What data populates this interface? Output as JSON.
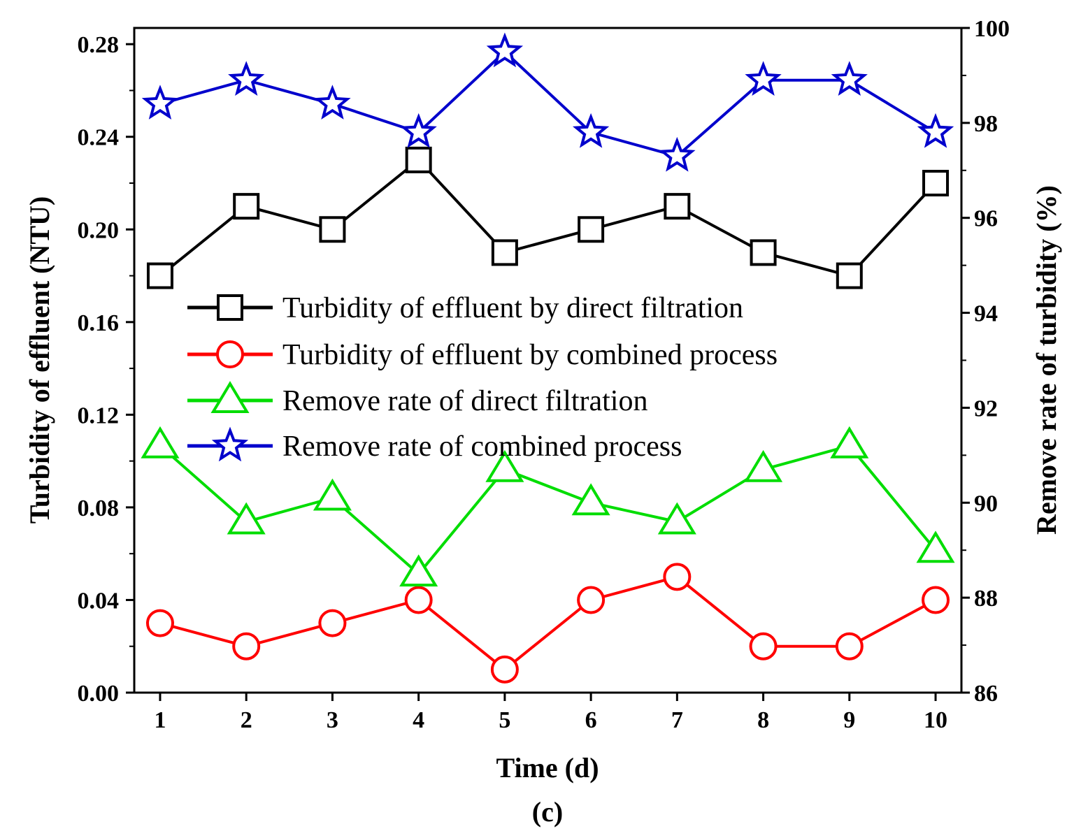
{
  "chart_data": {
    "type": "line",
    "panel_label": "(c)",
    "xlabel": "Time (d)",
    "ylabel_left": "Turbidity of effluent (NTU)",
    "ylabel_right": "Remove rate of turbidity (%)",
    "x": [
      1,
      2,
      3,
      4,
      5,
      6,
      7,
      8,
      9,
      10
    ],
    "x_tick_labels": [
      "1",
      "2",
      "3",
      "4",
      "5",
      "6",
      "7",
      "8",
      "9",
      "10"
    ],
    "xlim": [
      0.7,
      10.3
    ],
    "ylim_left": [
      0,
      0.287
    ],
    "ylim_right": [
      86,
      100
    ],
    "y_left_ticks": [
      "0.00",
      "0.04",
      "0.08",
      "0.12",
      "0.16",
      "0.20",
      "0.24",
      "0.28"
    ],
    "y_right_ticks": [
      "86",
      "88",
      "90",
      "92",
      "94",
      "96",
      "98",
      "100"
    ],
    "legend_position": "center",
    "series": [
      {
        "name": "Turbidity of effluent by direct filtration",
        "axis": "left",
        "marker": "square",
        "color": "#000000",
        "values": [
          0.18,
          0.21,
          0.2,
          0.23,
          0.19,
          0.2,
          0.21,
          0.19,
          0.18,
          0.22
        ]
      },
      {
        "name": "Turbidity of effluent by combined process",
        "axis": "left",
        "marker": "circle",
        "color": "#ff0000",
        "values": [
          0.03,
          0.02,
          0.03,
          0.04,
          0.01,
          0.04,
          0.05,
          0.02,
          0.02,
          0.04
        ]
      },
      {
        "name": "Remove rate of direct filtration",
        "axis": "right",
        "marker": "triangle",
        "color": "#00dd00",
        "values": [
          91.2,
          89.6,
          90.1,
          88.5,
          90.7,
          90.0,
          89.6,
          90.7,
          91.2,
          89.0
        ]
      },
      {
        "name": "Remove rate of combined process",
        "axis": "right",
        "marker": "star",
        "color": "#0000cc",
        "values": [
          98.4,
          98.9,
          98.4,
          97.8,
          99.5,
          97.8,
          97.3,
          98.9,
          98.9,
          97.8
        ]
      }
    ]
  }
}
